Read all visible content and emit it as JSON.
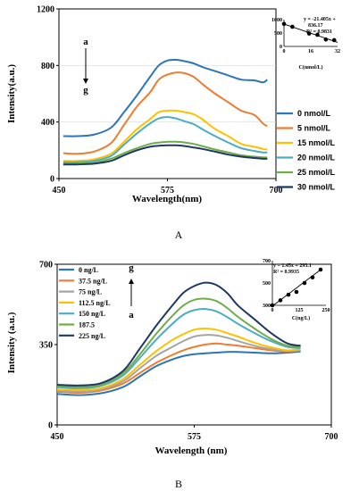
{
  "chart_data": [
    {
      "panel": "A",
      "type": "line",
      "xlabel": "Wavelength(nm)",
      "ylabel": "Intensity(a.u.)",
      "xlim": [
        450,
        700
      ],
      "ylim": [
        0,
        1200
      ],
      "xticks": [
        450,
        575,
        700
      ],
      "yticks": [
        0,
        400,
        800,
        1200
      ],
      "legend_position": "right",
      "markers": {
        "top": "a",
        "bottom": "g"
      },
      "x": [
        455,
        470,
        490,
        510,
        525,
        540,
        555,
        565,
        575,
        585,
        595,
        605,
        615,
        630,
        645,
        660,
        675,
        685,
        690
      ],
      "series": [
        {
          "name": "0 nmol/L",
          "color": "#2e75b6",
          "values": [
            300,
            300,
            310,
            360,
            470,
            590,
            720,
            800,
            835,
            840,
            830,
            815,
            790,
            760,
            730,
            700,
            695,
            680,
            700
          ]
        },
        {
          "name": "5 nmol/L",
          "color": "#ed7d31",
          "values": [
            180,
            175,
            190,
            250,
            380,
            510,
            610,
            700,
            735,
            750,
            745,
            720,
            670,
            600,
            540,
            480,
            450,
            390,
            370
          ]
        },
        {
          "name": "15 nmol/L",
          "color": "#ffc000",
          "values": [
            125,
            125,
            135,
            175,
            260,
            350,
            420,
            470,
            480,
            480,
            470,
            455,
            420,
            350,
            300,
            245,
            225,
            210,
            205
          ]
        },
        {
          "name": "20 nmol/L",
          "color": "#4bacc6",
          "values": [
            115,
            115,
            125,
            160,
            240,
            320,
            390,
            425,
            435,
            425,
            405,
            385,
            350,
            300,
            255,
            215,
            195,
            185,
            185
          ]
        },
        {
          "name": "25 nmol/L",
          "color": "#70ad47",
          "values": [
            105,
            105,
            112,
            140,
            180,
            215,
            245,
            255,
            260,
            260,
            255,
            245,
            230,
            205,
            185,
            165,
            155,
            150,
            150
          ]
        },
        {
          "name": "30 nmol/L",
          "color": "#1f3864",
          "values": [
            100,
            100,
            105,
            125,
            165,
            200,
            225,
            232,
            235,
            235,
            230,
            220,
            210,
            190,
            170,
            155,
            145,
            140,
            140
          ]
        }
      ],
      "inset": {
        "type": "scatter",
        "xlabel": "C(nmol/L)",
        "xticks": [
          0,
          16,
          32
        ],
        "yticks": [
          0,
          500,
          1000
        ],
        "xlim": [
          0,
          32
        ],
        "ylim": [
          0,
          1000
        ],
        "x": [
          0,
          5,
          15,
          20,
          25,
          30
        ],
        "y": [
          840,
          735,
          480,
          435,
          260,
          235
        ],
        "fit_x": [
          0,
          32
        ],
        "fit_y": [
          836.17,
          151.21
        ],
        "equation": "y = -21.405x +",
        "equation2": "836.17",
        "r2": "R² = 0.9831"
      }
    },
    {
      "panel": "B",
      "type": "line",
      "xlabel": "Wavelength (nm)",
      "ylabel": "Intensity (a.u.)",
      "xlim": [
        450,
        700
      ],
      "ylim": [
        0,
        700
      ],
      "xticks": [
        450,
        575,
        700
      ],
      "yticks": [
        0,
        350,
        700
      ],
      "legend_position": "left",
      "markers": {
        "top": "g",
        "bottom": "a"
      },
      "x": [
        450,
        470,
        490,
        510,
        525,
        540,
        555,
        565,
        575,
        585,
        595,
        605,
        615,
        630,
        645,
        660,
        672
      ],
      "series": [
        {
          "name": "0 ng/L",
          "color": "#2e75b6",
          "values": [
            135,
            130,
            138,
            165,
            210,
            255,
            285,
            300,
            308,
            312,
            315,
            318,
            318,
            315,
            312,
            315,
            320
          ]
        },
        {
          "name": "37.5 ng/L",
          "color": "#ed7d31",
          "values": [
            145,
            140,
            150,
            180,
            225,
            270,
            305,
            325,
            340,
            350,
            355,
            350,
            345,
            335,
            325,
            320,
            325
          ]
        },
        {
          "name": "75 ng/L",
          "color": "#a5a5a5",
          "values": [
            150,
            145,
            155,
            190,
            245,
            300,
            340,
            365,
            385,
            392,
            390,
            380,
            365,
            345,
            330,
            322,
            325
          ]
        },
        {
          "name": "112.5 ng/L",
          "color": "#ffc000",
          "values": [
            155,
            152,
            160,
            200,
            260,
            320,
            370,
            395,
            415,
            420,
            415,
            400,
            385,
            358,
            338,
            325,
            330
          ]
        },
        {
          "name": "150 ng/L",
          "color": "#4bacc6",
          "values": [
            165,
            160,
            170,
            215,
            290,
            370,
            440,
            480,
            500,
            505,
            495,
            470,
            440,
            400,
            365,
            340,
            335
          ]
        },
        {
          "name": "187.5",
          "color": "#70ad47",
          "values": [
            170,
            165,
            175,
            225,
            305,
            395,
            475,
            520,
            545,
            550,
            540,
            510,
            470,
            420,
            375,
            345,
            340
          ]
        },
        {
          "name": "225 ng/L",
          "color": "#1f3864",
          "values": [
            175,
            172,
            182,
            235,
            330,
            430,
            520,
            575,
            605,
            620,
            610,
            575,
            520,
            460,
            400,
            355,
            345
          ]
        }
      ],
      "inset": {
        "type": "scatter",
        "xlabel": "C(ng/L)",
        "xticks": [
          0,
          125,
          250
        ],
        "yticks": [
          300,
          500,
          700
        ],
        "xlim": [
          0,
          250
        ],
        "ylim": [
          300,
          700
        ],
        "x": [
          0,
          37.5,
          75,
          112.5,
          150,
          187.5,
          225
        ],
        "y": [
          300,
          345,
          395,
          420,
          500,
          550,
          620
        ],
        "fit_x": [
          0,
          225
        ],
        "fit_y": [
          293.1,
          619.35
        ],
        "equation": "y = 1.45x + 293.1",
        "r2": "R² = 0.9935"
      }
    }
  ],
  "captions": {
    "a": "A",
    "b": "B"
  }
}
